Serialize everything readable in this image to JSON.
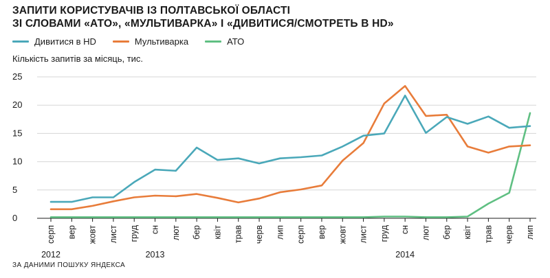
{
  "title_lines": [
    "ЗАПИТИ КОРИСТУВАЧІВ ІЗ ПОЛТАВСЬКОЇ ОБЛАСТІ",
    "ЗІ СЛОВАМИ «АТО», «МУЛЬТИВАРКА» І «ДИВИТИСЯ/СМОТРЕТЬ В HD»"
  ],
  "source": "ЗА ДАНИМИ ПОШУКУ ЯНДЕКСА",
  "chart_data": {
    "type": "line",
    "ylabel": "Кількість запитів за місяць, тис.",
    "ylim": [
      0,
      25
    ],
    "yticks": [
      0,
      5,
      10,
      15,
      20,
      25
    ],
    "grid": "horizontal",
    "legend_position": "top-left",
    "categories": [
      "серп",
      "вер",
      "жовт",
      "лист",
      "груд",
      "сн",
      "лют",
      "бер",
      "квіт",
      "трав",
      "черв",
      "лип",
      "серп",
      "вер",
      "жовт",
      "лист",
      "груд",
      "сн",
      "лют",
      "бер",
      "квіт",
      "трав",
      "черв",
      "лип"
    ],
    "year_labels": [
      {
        "label": "2012",
        "category_index": 0
      },
      {
        "label": "2013",
        "category_index": 5
      },
      {
        "label": "2014",
        "category_index": 17
      }
    ],
    "series": [
      {
        "name": "Дивитися в HD",
        "color": "#4aa8b9",
        "values": [
          2.9,
          2.9,
          3.7,
          3.7,
          6.4,
          8.6,
          8.4,
          12.5,
          10.3,
          10.6,
          9.7,
          10.6,
          10.8,
          11.1,
          12.7,
          14.6,
          15.0,
          21.7,
          15.1,
          17.9,
          16.7,
          18.0,
          16.0,
          16.3
        ]
      },
      {
        "name": "Мультиварка",
        "color": "#e87c3a",
        "values": [
          1.6,
          1.6,
          2.2,
          3.0,
          3.7,
          4.0,
          3.9,
          4.3,
          3.6,
          2.8,
          3.5,
          4.6,
          5.1,
          5.8,
          10.2,
          13.3,
          20.3,
          23.4,
          18.1,
          18.3,
          12.7,
          11.6,
          12.7,
          12.9
        ]
      },
      {
        "name": "АТО",
        "color": "#5fbf82",
        "values": [
          0.2,
          0.2,
          0.2,
          0.2,
          0.2,
          0.2,
          0.2,
          0.2,
          0.2,
          0.2,
          0.2,
          0.2,
          0.2,
          0.2,
          0.2,
          0.2,
          0.3,
          0.3,
          0.2,
          0.2,
          0.3,
          2.6,
          4.5,
          18.6
        ]
      }
    ]
  }
}
